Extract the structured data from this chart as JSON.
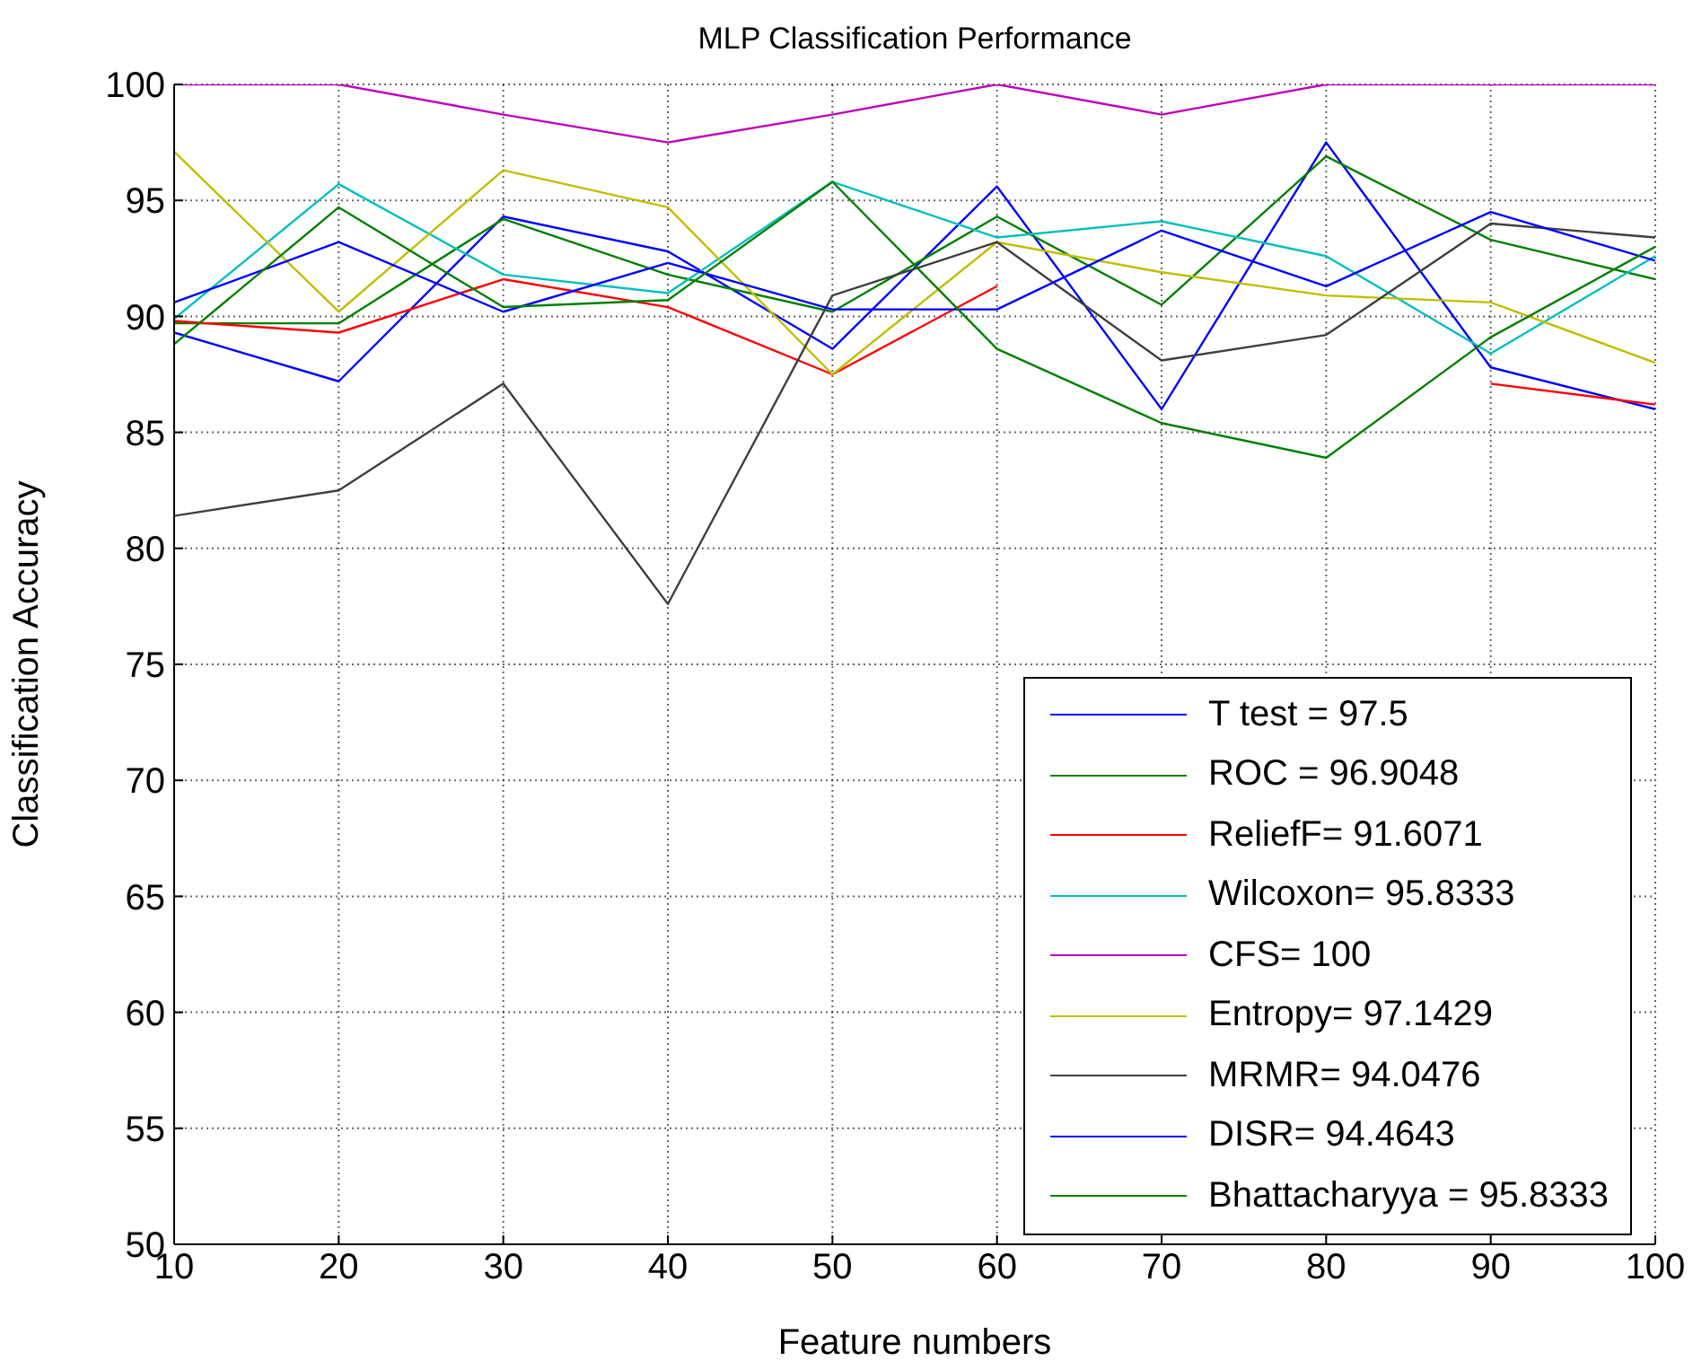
{
  "chart_data": {
    "type": "line",
    "title": "MLP Classification Performance",
    "xlabel": "Feature numbers",
    "ylabel": "Classification Accuracy",
    "x": [
      10,
      20,
      30,
      40,
      50,
      60,
      70,
      80,
      90,
      100
    ],
    "xlim": [
      10,
      100
    ],
    "xticks": [
      10,
      20,
      30,
      40,
      50,
      60,
      70,
      80,
      90,
      100
    ],
    "ylim": [
      50,
      100
    ],
    "yticks": [
      50,
      55,
      60,
      65,
      70,
      75,
      80,
      85,
      90,
      95,
      100
    ],
    "grid": true,
    "legend": "bottom right",
    "marker": "none",
    "line_style": "solid",
    "series": [
      {
        "name": "T test = 97.5",
        "color": "#0000ff",
        "values": [
          89.3,
          87.2,
          94.3,
          92.8,
          88.6,
          95.6,
          86.0,
          97.5,
          87.8,
          86.0
        ]
      },
      {
        "name": "ROC = 96.9048",
        "color": "#008000",
        "values": [
          89.7,
          89.7,
          94.2,
          91.8,
          90.2,
          94.3,
          90.5,
          96.9,
          93.3,
          91.6
        ]
      },
      {
        "name": "ReliefF= 91.6071",
        "color": "#ff0000",
        "values": [
          89.8,
          89.3,
          91.6,
          90.4,
          87.5,
          91.3,
          null,
          null,
          87.1,
          86.2
        ]
      },
      {
        "name": "Wilcoxon= 95.8333",
        "color": "#00bfbf",
        "values": [
          89.9,
          95.7,
          91.8,
          91.0,
          95.8,
          93.4,
          94.1,
          92.6,
          88.4,
          92.6
        ]
      },
      {
        "name": "CFS= 100",
        "color": "#bf00bf",
        "values": [
          100,
          100,
          98.7,
          97.5,
          98.7,
          100,
          98.7,
          100,
          100,
          100
        ]
      },
      {
        "name": "Entropy= 97.1429",
        "color": "#bfbf00",
        "values": [
          97.1,
          90.2,
          96.3,
          94.7,
          87.5,
          93.2,
          91.9,
          90.9,
          90.6,
          88.0
        ]
      },
      {
        "name": "MRMR= 94.0476",
        "color": "#404040",
        "values": [
          81.4,
          82.5,
          87.1,
          77.6,
          90.9,
          93.2,
          88.1,
          89.2,
          94.0,
          93.4
        ]
      },
      {
        "name": "DISR= 94.4643",
        "color": "#0000ff",
        "values": [
          90.6,
          93.2,
          90.2,
          92.3,
          90.3,
          90.3,
          93.7,
          91.3,
          94.5,
          92.4
        ]
      },
      {
        "name": "Bhattacharyya = 95.8333",
        "color": "#008000",
        "values": [
          88.8,
          94.7,
          90.4,
          90.7,
          95.8,
          88.6,
          85.4,
          83.9,
          89.1,
          93.0
        ]
      }
    ]
  }
}
